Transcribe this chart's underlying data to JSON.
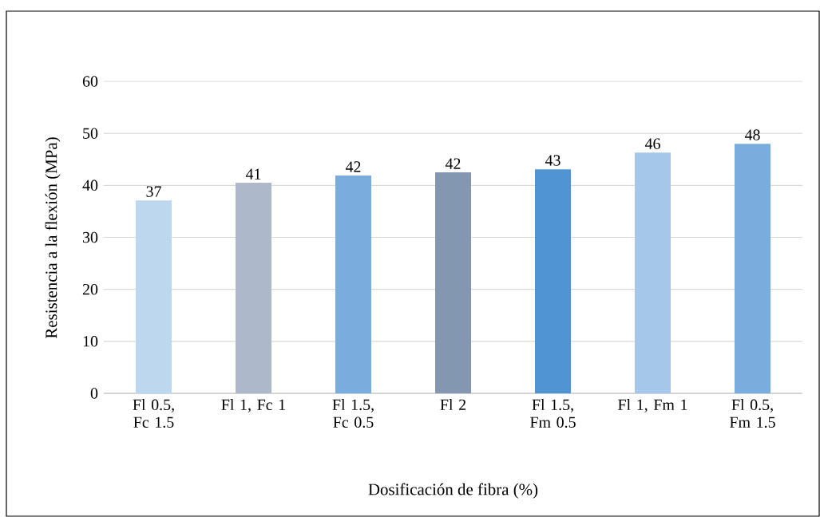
{
  "chart_data": {
    "type": "bar",
    "xlabel": "Dosificación de fibra (%)",
    "ylabel": "Resistencia a la flexión (MPa)",
    "categories": [
      "Fl 0.5, Fc 1.5",
      "Fl 1, Fc 1",
      "Fl 1.5, Fc 0.5",
      "Fl 2",
      "Fl 1.5, Fm 0.5",
      "Fl 1, Fm 1",
      "Fl 0.5, Fm 1.5"
    ],
    "values": [
      37.1,
      40.5,
      41.9,
      42.5,
      43.1,
      46.3,
      48.0
    ],
    "value_labels": [
      "37",
      "41",
      "42",
      "42",
      "43",
      "46",
      "48"
    ],
    "colors": [
      "#bdd7ee",
      "#adb9ca",
      "#7aaddd",
      "#8497b0",
      "#5194d3",
      "#a5c8ea",
      "#7aaddd"
    ],
    "ylim": [
      0,
      60
    ],
    "yticks": [
      0,
      10,
      20,
      30,
      40,
      50,
      60
    ],
    "grid": "y"
  }
}
